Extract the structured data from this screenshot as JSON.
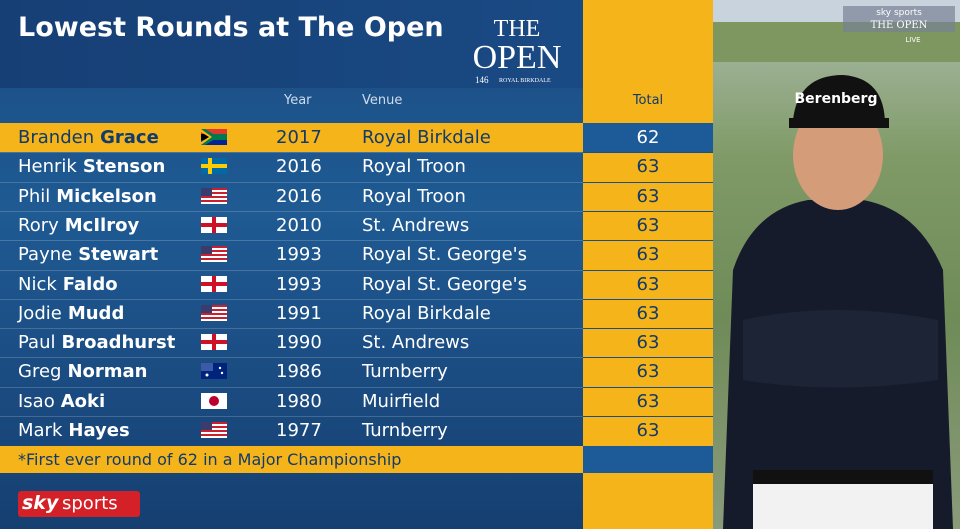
{
  "header": {
    "title": "Lowest Rounds at The Open"
  },
  "logo": {
    "the": "THE",
    "open": "OPEN",
    "edition": "146",
    "venue": "ROYAL BIRKDALE"
  },
  "columns": {
    "year": "Year",
    "venue": "Venue",
    "total": "Total"
  },
  "rows": [
    {
      "first": "Branden",
      "last": "Grace",
      "year": "2017",
      "venue": "Royal Birkdale",
      "total": "62"
    },
    {
      "first": "Henrik",
      "last": "Stenson",
      "year": "2016",
      "venue": "Royal Troon",
      "total": "63"
    },
    {
      "first": "Phil",
      "last": "Mickelson",
      "year": "2016",
      "venue": "Royal Troon",
      "total": "63"
    },
    {
      "first": "Rory",
      "last": "McIlroy",
      "year": "2010",
      "venue": "St. Andrews",
      "total": "63"
    },
    {
      "first": "Payne",
      "last": "Stewart",
      "year": "1993",
      "venue": "Royal St. George's",
      "total": "63"
    },
    {
      "first": "Nick",
      "last": "Faldo",
      "year": "1993",
      "venue": "Royal St. George's",
      "total": "63"
    },
    {
      "first": "Jodie",
      "last": "Mudd",
      "year": "1991",
      "venue": "Royal Birkdale",
      "total": "63"
    },
    {
      "first": "Paul",
      "last": "Broadhurst",
      "year": "1990",
      "venue": "St. Andrews",
      "total": "63"
    },
    {
      "first": "Greg",
      "last": "Norman",
      "year": "1986",
      "venue": "Turnberry",
      "total": "63"
    },
    {
      "first": "Isao",
      "last": "Aoki",
      "year": "1980",
      "venue": "Muirfield",
      "total": "63"
    },
    {
      "first": "Mark",
      "last": "Hayes",
      "year": "1977",
      "venue": "Turnberry",
      "total": "63"
    }
  ],
  "footnote": "*First ever round of 62 in a Major Championship",
  "brand": {
    "sky": "sky",
    "sports": "sports"
  },
  "bug": {
    "channel": "sky sports",
    "event": "THE OPEN",
    "live": "LIVE"
  },
  "cap": "Berenberg"
}
